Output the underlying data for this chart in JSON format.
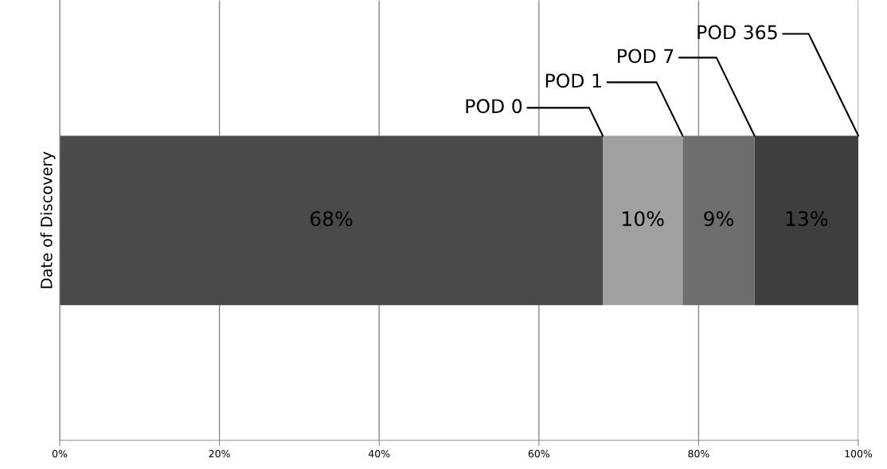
{
  "chart_data": {
    "type": "bar",
    "orientation": "horizontal",
    "stacked": true,
    "ylabel": "Date of Discovery",
    "categories": [
      null
    ],
    "series": [
      {
        "name": "POD 0",
        "color": "#4a4a4a",
        "values": [
          68
        ],
        "value_labels": [
          "68%"
        ]
      },
      {
        "name": "POD 1",
        "color": "#a0a0a0",
        "values": [
          10
        ],
        "value_labels": [
          "10%"
        ]
      },
      {
        "name": "POD 7",
        "color": "#6e6e6e",
        "values": [
          9
        ],
        "value_labels": [
          "9%"
        ]
      },
      {
        "name": "POD 365",
        "color": "#3e3e3e",
        "values": [
          13
        ],
        "value_labels": [
          "13%"
        ]
      }
    ],
    "xlim": [
      0,
      100
    ],
    "xticks": [
      {
        "value": 0,
        "label": "0%"
      },
      {
        "value": 20,
        "label": "20%"
      },
      {
        "value": 40,
        "label": "40%"
      },
      {
        "value": 60,
        "label": "60%"
      },
      {
        "value": 80,
        "label": "80%"
      },
      {
        "value": 100,
        "label": "100%"
      }
    ],
    "grid": "x",
    "legend": false
  }
}
